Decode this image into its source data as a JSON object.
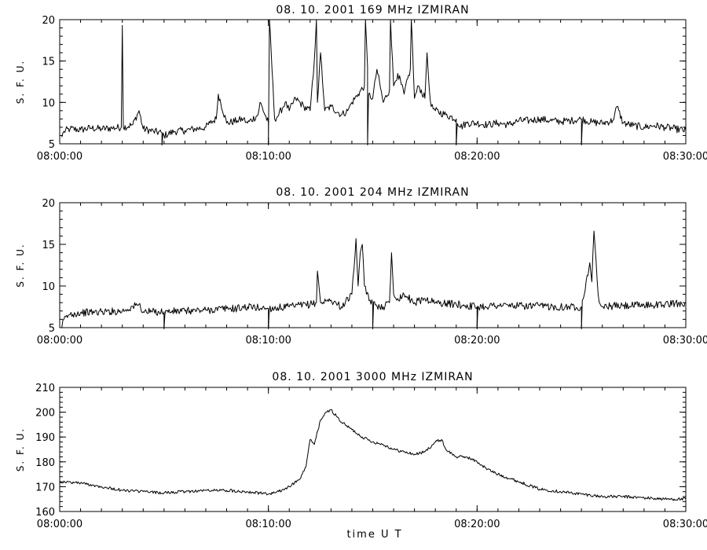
{
  "figure": {
    "x_axis_title": "time  U T"
  },
  "chart_data": [
    {
      "type": "line",
      "title": "08.  10.  2001    169  MHz    IZMIRAN",
      "ylabel": "S. F. U.",
      "xlabel": "",
      "xlim": [
        0,
        30
      ],
      "ylim": [
        5,
        20
      ],
      "yticks": [
        5,
        10,
        15,
        20
      ],
      "xticks": [
        0,
        10,
        20,
        30
      ],
      "xtick_labels": [
        "08:00:00",
        "08:10:00",
        "08:20:00",
        "08:30:00"
      ],
      "grid": false,
      "series": [
        {
          "x": [
            0.1,
            0.2,
            0.5,
            1.0,
            1.5,
            2.0,
            2.5,
            2.95,
            3.0,
            3.05,
            3.5,
            3.8,
            4.0,
            4.5,
            4.9,
            5.0,
            5.5,
            6.0,
            6.5,
            7.0,
            7.2,
            7.5,
            7.6,
            8.0,
            8.5,
            8.8,
            9.0,
            9.5,
            9.6,
            10.0,
            10.05,
            10.3,
            10.5,
            10.8,
            11.0,
            11.3,
            11.7,
            12.0,
            12.2,
            12.3,
            12.35,
            12.5,
            12.7,
            13.0,
            13.5,
            13.8,
            14.0,
            14.3,
            14.6,
            14.65,
            14.8,
            15.0,
            15.2,
            15.5,
            15.8,
            15.85,
            16.0,
            16.2,
            16.5,
            16.8,
            16.85,
            17.0,
            17.2,
            17.5,
            17.6,
            17.7,
            17.8,
            18.0,
            18.5,
            19.0,
            19.2,
            19.5,
            20.0,
            20.5,
            21.0,
            21.5,
            22.0,
            22.5,
            23.0,
            23.5,
            24.0,
            24.5,
            25.0,
            25.5,
            26.0,
            26.5,
            26.7,
            27.0,
            27.5,
            28.0,
            28.5,
            29.0,
            29.5,
            30.0
          ],
          "values": [
            5.8,
            6.5,
            6.8,
            6.7,
            6.9,
            6.8,
            6.9,
            7.0,
            19.3,
            7.0,
            7.3,
            9.0,
            6.8,
            6.5,
            6.3,
            6.0,
            6.5,
            6.6,
            6.8,
            7.0,
            7.5,
            8.0,
            11.0,
            7.5,
            7.8,
            8.0,
            7.5,
            8.5,
            10.0,
            7.5,
            20.0,
            8.0,
            8.5,
            10.0,
            9.0,
            10.5,
            9.5,
            9.0,
            15.0,
            20.0,
            10.0,
            16.0,
            9.0,
            9.5,
            8.5,
            9.0,
            10.0,
            11.0,
            12.0,
            20.0,
            11.0,
            10.5,
            14.0,
            10.0,
            11.5,
            20.0,
            12.0,
            13.5,
            11.0,
            14.0,
            20.0,
            10.5,
            12.0,
            10.5,
            16.0,
            12.0,
            9.5,
            9.0,
            8.5,
            8.0,
            7.0,
            7.5,
            7.5,
            7.3,
            7.5,
            7.3,
            7.8,
            7.8,
            8.0,
            7.8,
            7.7,
            7.8,
            8.0,
            7.6,
            7.5,
            7.8,
            9.5,
            7.5,
            7.2,
            7.0,
            7.2,
            7.0,
            6.8,
            6.6
          ],
          "dips": [
            4.9,
            10.0,
            14.75,
            19.0,
            25.0
          ]
        }
      ]
    },
    {
      "type": "line",
      "title": "08.  10.  2001    204  MHz    IZMIRAN",
      "ylabel": "S. F. U.",
      "xlabel": "",
      "xlim": [
        0,
        30
      ],
      "ylim": [
        5,
        20
      ],
      "yticks": [
        5,
        10,
        15,
        20
      ],
      "xticks": [
        0,
        10,
        20,
        30
      ],
      "xtick_labels": [
        "08:00:00",
        "08:10:00",
        "08:20:00",
        "08:30:00"
      ],
      "grid": false,
      "series": [
        {
          "x": [
            0.1,
            0.2,
            0.5,
            1.0,
            2.0,
            3.0,
            3.8,
            4.0,
            5.0,
            6.0,
            7.0,
            8.0,
            8.5,
            9.0,
            10.0,
            11.0,
            12.0,
            12.3,
            12.35,
            12.5,
            13.0,
            13.5,
            14.0,
            14.1,
            14.2,
            14.3,
            14.4,
            14.5,
            14.6,
            14.7,
            15.0,
            15.5,
            15.8,
            15.9,
            16.0,
            16.2,
            16.5,
            17.0,
            17.5,
            18.0,
            19.0,
            20.0,
            21.0,
            22.0,
            23.0,
            24.0,
            25.0,
            25.4,
            25.5,
            25.6,
            25.7,
            25.8,
            25.9,
            26.0,
            26.5,
            27.0,
            28.0,
            29.0,
            30.0
          ],
          "values": [
            5.0,
            6.0,
            6.6,
            6.8,
            6.9,
            7.0,
            7.8,
            6.9,
            6.9,
            7.0,
            7.1,
            7.3,
            7.3,
            7.5,
            7.3,
            7.5,
            7.8,
            8.0,
            11.8,
            8.0,
            8.3,
            7.5,
            9.0,
            12.0,
            15.7,
            10.0,
            14.0,
            15.0,
            10.0,
            9.0,
            7.8,
            7.5,
            8.0,
            14.0,
            9.0,
            8.5,
            9.0,
            8.0,
            8.5,
            8.0,
            7.8,
            7.5,
            7.7,
            7.6,
            7.6,
            7.5,
            7.5,
            12.8,
            10.5,
            16.6,
            13.0,
            9.0,
            7.8,
            7.5,
            7.6,
            7.6,
            7.7,
            7.8,
            8.0
          ],
          "dips": [
            5.0,
            10.0,
            15.0,
            20.0,
            25.0
          ]
        }
      ]
    },
    {
      "type": "line",
      "title": "08.  10.  2001    3000  MHz    IZMIRAN",
      "ylabel": "S. F. U.",
      "xlabel": "time  U T",
      "xlim": [
        0,
        30
      ],
      "ylim": [
        160,
        210
      ],
      "yticks": [
        160,
        170,
        180,
        190,
        200,
        210
      ],
      "xticks": [
        0,
        10,
        20,
        30
      ],
      "xtick_labels": [
        "08:00:00",
        "08:10:00",
        "08:20:00",
        "08:30:00"
      ],
      "grid": false,
      "series": [
        {
          "x": [
            0,
            1,
            2,
            3,
            4,
            5,
            6,
            7,
            8,
            9,
            10,
            10.5,
            11,
            11.5,
            11.8,
            12.0,
            12.2,
            12.5,
            12.8,
            13.0,
            13.3,
            13.5,
            14,
            14.5,
            15,
            15.5,
            16,
            16.5,
            17,
            17.5,
            18,
            18.3,
            18.5,
            19,
            19.5,
            20,
            20.5,
            21,
            22,
            23,
            24,
            25,
            26,
            27,
            28,
            29,
            30
          ],
          "values": [
            172,
            171.5,
            170,
            168.5,
            168,
            167.5,
            168,
            168.5,
            168.5,
            168,
            167,
            168,
            170,
            173,
            178,
            189,
            187,
            197,
            200,
            201,
            198,
            196,
            193,
            190,
            188,
            187,
            185,
            184,
            183,
            184,
            188,
            189,
            185,
            182,
            182,
            180,
            177,
            175,
            172,
            169,
            168,
            167,
            166,
            166,
            165.5,
            165,
            165
          ]
        }
      ]
    }
  ]
}
